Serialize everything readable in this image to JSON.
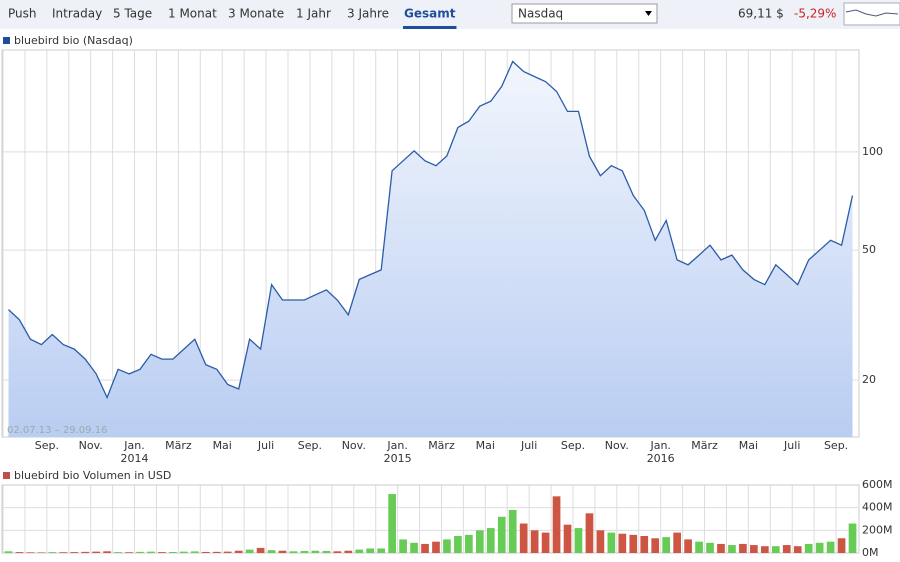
{
  "toolbar": {
    "tabs": [
      "Push",
      "Intraday",
      "5 Tage",
      "1 Monat",
      "3 Monate",
      "1 Jahr",
      "3 Jahre",
      "Gesamt"
    ],
    "active_tab": 7,
    "exchange": "Nasdaq",
    "price": "69,11 $",
    "change": "-5,29%"
  },
  "chart_data": [
    {
      "type": "line",
      "legend": "bluebird bio (Nasdaq)",
      "date_range": "02.07.13 – 29.09.16",
      "categories": [
        null,
        null,
        null,
        null,
        "Sep.",
        null,
        null,
        null,
        "Nov.",
        null,
        null,
        null,
        "Jan.\n2014",
        null,
        null,
        null,
        "März",
        null,
        null,
        null,
        "Mai",
        null,
        null,
        null,
        "Juli",
        null,
        null,
        null,
        "Sep.",
        null,
        null,
        null,
        "Nov.",
        null,
        null,
        null,
        "Jan.\n2015",
        null,
        null,
        null,
        "März",
        null,
        null,
        null,
        "Mai",
        null,
        null,
        null,
        "Juli",
        null,
        null,
        null,
        "Sep.",
        null,
        null,
        null,
        "Nov.",
        null,
        null,
        null,
        "Jan.\n2016",
        null,
        null,
        null,
        "März",
        null,
        null,
        null,
        "Mai",
        null,
        null,
        null,
        "Juli",
        null,
        null,
        null,
        "Sep.",
        null
      ],
      "values": [
        32.9,
        30.6,
        26.7,
        25.7,
        27.6,
        25.7,
        24.9,
        23.2,
        20.9,
        17.7,
        21.6,
        20.9,
        21.6,
        24.0,
        23.2,
        23.2,
        24.9,
        26.7,
        22.3,
        21.6,
        19.4,
        18.8,
        26.7,
        24.9,
        39.2,
        35.2,
        35.2,
        35.2,
        36.5,
        37.8,
        35.2,
        31.7,
        40.7,
        42.1,
        43.5,
        87.5,
        93.9,
        100.7,
        93.9,
        90.7,
        97.2,
        118.7,
        124.2,
        138,
        142.9,
        158.7,
        189,
        176,
        170,
        164,
        153,
        133,
        133,
        97,
        84.5,
        90.7,
        87.5,
        73.5,
        66.2,
        53.6,
        61.7,
        46.7,
        45.1,
        48.3,
        51.8,
        46.7,
        48.3,
        43.5,
        40.7,
        39.2,
        45.1,
        42.1,
        39.2,
        46.7,
        50,
        53.6,
        51.8,
        73.5
      ],
      "color": "#2b5ca8",
      "legend_color": "#1f4e9b",
      "log_scale": true,
      "ylim": [
        13.4,
        205
      ],
      "yticks": [
        20,
        50,
        100
      ],
      "grid": true
    },
    {
      "type": "bar",
      "legend": "bluebird bio Volumen in USD",
      "values": [
        15,
        8,
        6,
        5,
        8,
        7,
        8,
        10,
        12,
        15,
        8,
        7,
        10,
        12,
        8,
        9,
        12,
        14,
        9,
        10,
        12,
        20,
        30,
        45,
        25,
        20,
        15,
        18,
        20,
        18,
        15,
        20,
        30,
        40,
        40,
        520,
        120,
        90,
        80,
        100,
        120,
        150,
        160,
        200,
        220,
        320,
        380,
        260,
        200,
        180,
        500,
        250,
        220,
        350,
        200,
        180,
        170,
        160,
        150,
        130,
        140,
        180,
        120,
        100,
        90,
        80,
        70,
        80,
        70,
        60,
        60,
        70,
        60,
        80,
        90,
        100,
        130,
        260
      ],
      "up_color": "#66cc55",
      "down_color": "#cc5544",
      "legend_color": "#c0504d",
      "ylim": [
        0,
        600
      ],
      "yticks": [
        {
          "value": 0,
          "label": "0M"
        },
        {
          "value": 200,
          "label": "200M"
        },
        {
          "value": 400,
          "label": "400M"
        },
        {
          "value": 600,
          "label": "600M"
        }
      ],
      "grid": true
    }
  ]
}
